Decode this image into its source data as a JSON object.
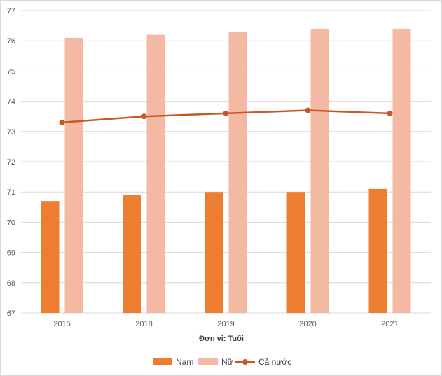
{
  "chart_data": {
    "type": "bar",
    "categories": [
      "2015",
      "2018",
      "2019",
      "2020",
      "2021"
    ],
    "series": [
      {
        "name": "Nam",
        "type": "bar",
        "color": "#ED7D31",
        "values": [
          70.7,
          70.9,
          71.0,
          71.0,
          71.1
        ]
      },
      {
        "name": "Nữ",
        "type": "bar",
        "color": "#F4B9A2",
        "values": [
          76.1,
          76.2,
          76.3,
          76.4,
          76.4
        ]
      },
      {
        "name": "Cả nước",
        "type": "line",
        "color": "#C55A24",
        "values": [
          73.3,
          73.5,
          73.6,
          73.7,
          73.6
        ]
      }
    ],
    "xlabel": "Đơn vị: Tuổi",
    "ylabel": "",
    "ylim": [
      67,
      77
    ],
    "yticks": [
      "67",
      "68",
      "69",
      "70",
      "71",
      "72",
      "73",
      "74",
      "75",
      "76",
      "77"
    ],
    "grid": true,
    "legend_position": "bottom"
  }
}
